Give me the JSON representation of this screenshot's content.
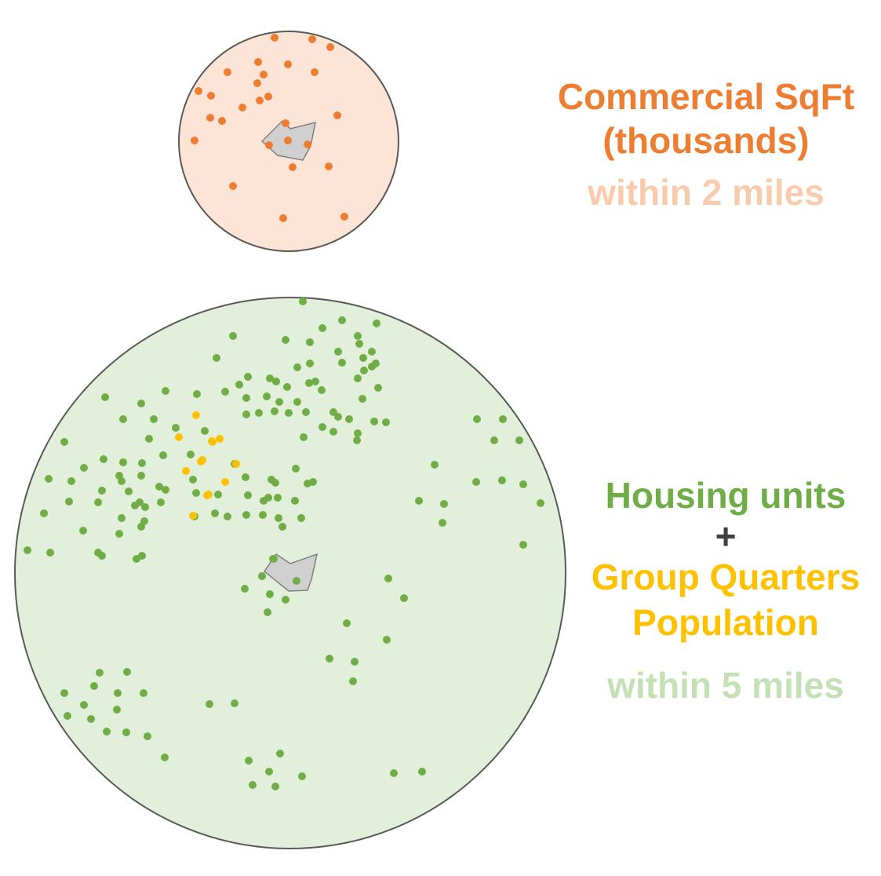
{
  "colors": {
    "orange": "#ED7D31",
    "orange_light": "#F8CBAD",
    "orange_fill": "#FCE4D6",
    "green": "#70AD47",
    "green_light": "#C5E0B4",
    "green_fill": "#E2EFDA",
    "gold": "#FFC000",
    "plus": "#404040",
    "site_fill": "#D0D0D0",
    "site_stroke": "#808080",
    "circle_stroke": "#595959"
  },
  "labels": {
    "commercial_line1": "Commercial SqFt",
    "commercial_line2": "(thousands)",
    "commercial_radius": "within 2 miles",
    "housing_line1": "Housing units",
    "plus": "+",
    "group_quarters_line1": "Group Quarters",
    "group_quarters_line2": "Population",
    "housing_radius": "within 5 miles"
  },
  "buffers": [
    {
      "id": "commercial",
      "radius_miles": 2,
      "fill": "orange_fill",
      "dot_color": "orange",
      "dot_count": 34
    },
    {
      "id": "housing",
      "radius_miles": 5,
      "fill": "green_fill",
      "dot_color": "green",
      "dot_count": 214,
      "secondary_dot_color": "gold",
      "secondary_dot_count": 13
    }
  ]
}
